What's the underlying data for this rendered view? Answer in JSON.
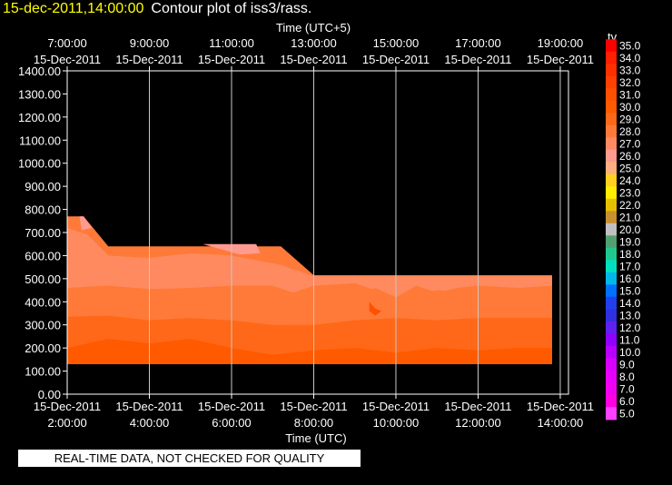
{
  "header": {
    "timestamp": "15-dec-2011,14:00:00",
    "title": "Contour plot of iss3/rass."
  },
  "footer": {
    "notice": "REAL-TIME DATA, NOT CHECKED FOR QUALITY"
  },
  "chart_data": {
    "type": "heatmap",
    "xlabel_bottom": "Time (UTC)",
    "xlabel_top": "Time (UTC+5)",
    "ylim": [
      0,
      1400
    ],
    "xlim": [
      "15-Dec-2011 2:00:00",
      "15-Dec-2011 14:00:00"
    ],
    "grid": true,
    "y_ticks": [
      "0.00",
      "100.00",
      "200.00",
      "300.00",
      "400.00",
      "500.00",
      "600.00",
      "700.00",
      "800.00",
      "900.00",
      "1000.00",
      "1100.00",
      "1200.00",
      "1300.00",
      "1400.00"
    ],
    "x_ticks_bottom": [
      {
        "hour": 2,
        "date": "15-Dec-2011",
        "time": "2:00:00"
      },
      {
        "hour": 4,
        "date": "15-Dec-2011",
        "time": "4:00:00"
      },
      {
        "hour": 6,
        "date": "15-Dec-2011",
        "time": "6:00:00"
      },
      {
        "hour": 8,
        "date": "15-Dec-2011",
        "time": "8:00:00"
      },
      {
        "hour": 10,
        "date": "15-Dec-2011",
        "time": "10:00:00"
      },
      {
        "hour": 12,
        "date": "15-Dec-2011",
        "time": "12:00:00"
      },
      {
        "hour": 14,
        "date": "15-Dec-2011",
        "time": "14:00:00"
      }
    ],
    "x_ticks_top": [
      {
        "hour": 2,
        "time": "7:00:00",
        "date": "15-Dec-2011"
      },
      {
        "hour": 4,
        "time": "9:00:00",
        "date": "15-Dec-2011"
      },
      {
        "hour": 6,
        "time": "11:00:00",
        "date": "15-Dec-2011"
      },
      {
        "hour": 8,
        "time": "13:00:00",
        "date": "15-Dec-2011"
      },
      {
        "hour": 10,
        "time": "15:00:00",
        "date": "15-Dec-2011"
      },
      {
        "hour": 12,
        "time": "17:00:00",
        "date": "15-Dec-2011"
      },
      {
        "hour": 14,
        "time": "19:00:00",
        "date": "15-Dec-2011"
      }
    ],
    "colorbar": {
      "label": "tv",
      "levels": [
        "35.0",
        "34.0",
        "33.0",
        "32.0",
        "31.0",
        "30.0",
        "29.0",
        "28.0",
        "27.0",
        "26.0",
        "25.0",
        "24.0",
        "23.0",
        "22.0",
        "21.0",
        "20.0",
        "19.0",
        "18.0",
        "17.0",
        "16.0",
        "15.0",
        "14.0",
        "13.0",
        "12.0",
        "11.0",
        "10.0",
        "9.0",
        "8.0",
        "7.0",
        "6.0",
        "5.0"
      ],
      "colors": [
        "#ff0000",
        "#ff2000",
        "#ff3000",
        "#ff4000",
        "#ff5000",
        "#ff5a00",
        "#ff6818",
        "#ff7a38",
        "#ff8a60",
        "#ff9a90",
        "#ffb080",
        "#ffd020",
        "#ffee00",
        "#e6c000",
        "#c89030",
        "#c0c0c0",
        "#50a070",
        "#20c890",
        "#00e0c0",
        "#00b8e8",
        "#0070ff",
        "#2040f0",
        "#3030e0",
        "#6020f0",
        "#9000ff",
        "#b800ff",
        "#d800ff",
        "#e800ff",
        "#f000f0",
        "#ff00e0",
        "#ff40ff"
      ]
    },
    "series": [
      {
        "tv": "28.0",
        "boundary": [
          [
            2.0,
            770
          ],
          [
            2.4,
            770
          ],
          [
            3.0,
            640
          ],
          [
            7.2,
            640
          ],
          [
            8.0,
            515
          ],
          [
            13.8,
            515
          ],
          [
            13.8,
            130
          ],
          [
            2.0,
            130
          ]
        ]
      },
      {
        "tv": "26.0",
        "boundary": [
          [
            2.3,
            770
          ],
          [
            2.4,
            770
          ],
          [
            2.6,
            720
          ],
          [
            2.35,
            710
          ]
        ]
      },
      {
        "tv": "26.0",
        "boundary": [
          [
            5.3,
            650
          ],
          [
            6.6,
            650
          ],
          [
            6.7,
            610
          ],
          [
            6.2,
            605
          ],
          [
            5.8,
            625
          ]
        ]
      },
      {
        "tv": "27.0",
        "boundary": [
          [
            2.0,
            720
          ],
          [
            2.5,
            690
          ],
          [
            3.0,
            600
          ],
          [
            4.0,
            590
          ],
          [
            5.0,
            610
          ],
          [
            6.0,
            600
          ],
          [
            7.2,
            560
          ],
          [
            8.0,
            510
          ],
          [
            13.8,
            510
          ],
          [
            13.8,
            420
          ],
          [
            13,
            420
          ],
          [
            12,
            440
          ],
          [
            11,
            450
          ],
          [
            10,
            420
          ],
          [
            9,
            480
          ],
          [
            8,
            470
          ],
          [
            7.5,
            440
          ],
          [
            7,
            470
          ],
          [
            6,
            470
          ],
          [
            5,
            460
          ],
          [
            4,
            455
          ],
          [
            3,
            470
          ],
          [
            2,
            460
          ]
        ]
      },
      {
        "tv": "28.0",
        "boundary": [
          [
            2.0,
            450
          ],
          [
            3,
            455
          ],
          [
            4,
            450
          ],
          [
            5,
            460
          ],
          [
            6,
            455
          ],
          [
            7,
            440
          ],
          [
            7.5,
            420
          ],
          [
            8,
            445
          ],
          [
            8.5,
            440
          ],
          [
            9,
            420
          ],
          [
            9.5,
            460
          ],
          [
            10,
            420
          ],
          [
            10.5,
            470
          ],
          [
            11,
            440
          ],
          [
            11.5,
            460
          ],
          [
            12,
            470
          ],
          [
            13,
            460
          ],
          [
            13.8,
            470
          ],
          [
            13.8,
            330
          ],
          [
            13,
            330
          ],
          [
            12,
            340
          ],
          [
            11,
            330
          ],
          [
            10,
            320
          ],
          [
            9,
            320
          ],
          [
            8,
            310
          ],
          [
            7,
            300
          ],
          [
            6,
            320
          ],
          [
            5,
            330
          ],
          [
            4,
            330
          ],
          [
            3,
            340
          ],
          [
            2,
            330
          ]
        ]
      },
      {
        "tv": "29.0",
        "boundary": [
          [
            2.0,
            335
          ],
          [
            3,
            340
          ],
          [
            4,
            320
          ],
          [
            5,
            330
          ],
          [
            6,
            320
          ],
          [
            7,
            300
          ],
          [
            8,
            300
          ],
          [
            9,
            320
          ],
          [
            10,
            330
          ],
          [
            11,
            320
          ],
          [
            12,
            330
          ],
          [
            13,
            330
          ],
          [
            13.8,
            330
          ],
          [
            13.8,
            130
          ],
          [
            2.0,
            130
          ]
        ]
      },
      {
        "tv": "30.0",
        "boundary": [
          [
            2.0,
            200
          ],
          [
            3,
            240
          ],
          [
            4,
            220
          ],
          [
            5,
            240
          ],
          [
            6,
            200
          ],
          [
            7,
            170
          ],
          [
            8,
            190
          ],
          [
            9,
            200
          ],
          [
            10,
            180
          ],
          [
            11,
            200
          ],
          [
            12,
            190
          ],
          [
            13,
            200
          ],
          [
            13.8,
            200
          ],
          [
            13.8,
            130
          ],
          [
            2.0,
            130
          ]
        ]
      },
      {
        "tv": "31.0",
        "boundary": [
          [
            9.35,
            400
          ],
          [
            9.5,
            370
          ],
          [
            9.65,
            360
          ],
          [
            9.5,
            340
          ],
          [
            9.35,
            360
          ]
        ]
      }
    ]
  }
}
